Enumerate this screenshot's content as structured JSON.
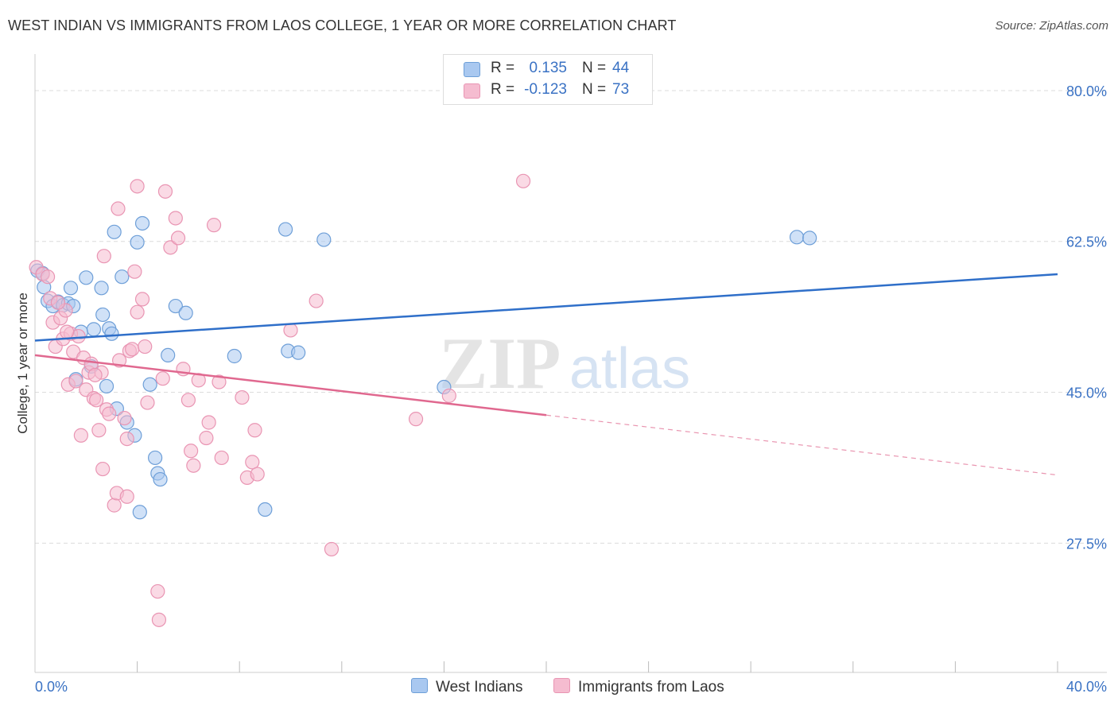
{
  "title": "WEST INDIAN VS IMMIGRANTS FROM LAOS COLLEGE, 1 YEAR OR MORE CORRELATION CHART",
  "source": "Source: ZipAtlas.com",
  "watermark": {
    "zip": "ZIP",
    "atlas": "atlas"
  },
  "legend": {
    "rows": [
      {
        "r_label": "R =",
        "r_value": "0.135",
        "n_label": "N =",
        "n_value": "44"
      },
      {
        "r_label": "R =",
        "r_value": "-0.123",
        "n_label": "N =",
        "n_value": "73"
      }
    ]
  },
  "colors": {
    "blue_fill": "#a9c8f0",
    "blue_stroke": "#6e9fd8",
    "blue_line": "#2f6fc9",
    "pink_fill": "#f5bcd0",
    "pink_stroke": "#e995b3",
    "pink_line": "#e0688f",
    "axis_text": "#3a72c4",
    "grid": "#dcdcdc"
  },
  "chart_data": {
    "type": "scatter",
    "xlabel": "",
    "ylabel": "College, 1 year or more",
    "xlim": [
      0,
      40
    ],
    "ylim": [
      12.5,
      83.5
    ],
    "x_tick_labels": [
      "0.0%",
      "40.0%"
    ],
    "y_ticks": [
      27.5,
      45.0,
      62.5,
      80.0
    ],
    "y_tick_labels": [
      "27.5%",
      "45.0%",
      "62.5%",
      "80.0%"
    ],
    "grid": true,
    "legend_position": "top-center",
    "series": [
      {
        "name": "West Indians",
        "color": "#6e9fd8",
        "trend": {
          "x": [
            0,
            40
          ],
          "y": [
            51.0,
            58.7
          ],
          "dashed_from": null
        },
        "points": [
          [
            0.1,
            59.1
          ],
          [
            0.3,
            58.8
          ],
          [
            0.35,
            57.2
          ],
          [
            0.5,
            55.6
          ],
          [
            0.7,
            55.0
          ],
          [
            0.9,
            55.5
          ],
          [
            1.1,
            55.1
          ],
          [
            1.3,
            55.3
          ],
          [
            1.4,
            57.1
          ],
          [
            1.5,
            55.0
          ],
          [
            1.6,
            46.5
          ],
          [
            1.8,
            52.0
          ],
          [
            2.0,
            58.3
          ],
          [
            2.2,
            48.0
          ],
          [
            2.3,
            52.3
          ],
          [
            2.6,
            57.1
          ],
          [
            2.65,
            54.0
          ],
          [
            2.8,
            45.7
          ],
          [
            2.9,
            52.4
          ],
          [
            3.0,
            51.8
          ],
          [
            3.1,
            63.6
          ],
          [
            3.2,
            43.1
          ],
          [
            3.4,
            58.4
          ],
          [
            3.6,
            41.5
          ],
          [
            3.9,
            40.0
          ],
          [
            4.0,
            62.4
          ],
          [
            4.2,
            64.6
          ],
          [
            4.5,
            45.9
          ],
          [
            4.7,
            37.4
          ],
          [
            4.8,
            35.6
          ],
          [
            4.9,
            34.9
          ],
          [
            5.2,
            49.3
          ],
          [
            5.5,
            55.0
          ],
          [
            5.9,
            54.2
          ],
          [
            7.8,
            49.2
          ],
          [
            9.0,
            31.4
          ],
          [
            9.8,
            63.9
          ],
          [
            9.9,
            49.8
          ],
          [
            10.3,
            49.6
          ],
          [
            11.3,
            62.7
          ],
          [
            16.0,
            45.6
          ],
          [
            29.8,
            63.0
          ],
          [
            30.3,
            62.9
          ],
          [
            4.1,
            31.1
          ]
        ]
      },
      {
        "name": "Immigrants from Laos",
        "color": "#e995b3",
        "trend": {
          "x": [
            0,
            40
          ],
          "y": [
            49.3,
            35.4
          ],
          "dashed_from": 20
        },
        "points": [
          [
            0.05,
            59.5
          ],
          [
            0.3,
            58.7
          ],
          [
            0.6,
            55.9
          ],
          [
            0.7,
            53.1
          ],
          [
            0.8,
            50.3
          ],
          [
            1.0,
            53.6
          ],
          [
            1.1,
            51.2
          ],
          [
            1.2,
            54.5
          ],
          [
            1.3,
            45.9
          ],
          [
            1.4,
            51.8
          ],
          [
            1.5,
            49.7
          ],
          [
            1.6,
            46.3
          ],
          [
            1.7,
            51.5
          ],
          [
            1.8,
            40.0
          ],
          [
            1.9,
            49.0
          ],
          [
            2.0,
            45.3
          ],
          [
            2.1,
            47.3
          ],
          [
            2.2,
            48.3
          ],
          [
            2.3,
            44.3
          ],
          [
            2.4,
            44.1
          ],
          [
            2.5,
            40.6
          ],
          [
            2.6,
            47.3
          ],
          [
            2.65,
            36.1
          ],
          [
            2.7,
            60.8
          ],
          [
            2.8,
            43.0
          ],
          [
            2.9,
            42.5
          ],
          [
            3.1,
            31.9
          ],
          [
            3.2,
            33.3
          ],
          [
            3.25,
            66.3
          ],
          [
            3.3,
            48.7
          ],
          [
            3.5,
            42.0
          ],
          [
            3.6,
            32.9
          ],
          [
            3.6,
            39.6
          ],
          [
            3.7,
            49.8
          ],
          [
            3.8,
            50.0
          ],
          [
            3.9,
            59.0
          ],
          [
            4.0,
            54.3
          ],
          [
            4.0,
            68.9
          ],
          [
            4.2,
            55.8
          ],
          [
            4.3,
            50.3
          ],
          [
            4.4,
            43.8
          ],
          [
            4.8,
            21.9
          ],
          [
            4.85,
            18.6
          ],
          [
            5.0,
            46.6
          ],
          [
            5.1,
            68.3
          ],
          [
            5.3,
            61.8
          ],
          [
            5.5,
            65.2
          ],
          [
            5.6,
            62.9
          ],
          [
            5.8,
            47.7
          ],
          [
            6.0,
            44.1
          ],
          [
            6.1,
            38.2
          ],
          [
            6.2,
            36.5
          ],
          [
            6.4,
            46.4
          ],
          [
            6.7,
            39.7
          ],
          [
            6.8,
            41.5
          ],
          [
            7.0,
            64.4
          ],
          [
            7.2,
            46.2
          ],
          [
            7.3,
            37.4
          ],
          [
            8.1,
            44.4
          ],
          [
            8.3,
            35.1
          ],
          [
            8.5,
            36.9
          ],
          [
            8.6,
            40.6
          ],
          [
            8.7,
            35.5
          ],
          [
            10.0,
            52.2
          ],
          [
            11.0,
            55.6
          ],
          [
            11.6,
            26.8
          ],
          [
            14.9,
            41.9
          ],
          [
            16.2,
            44.6
          ],
          [
            19.1,
            69.5
          ],
          [
            0.5,
            58.4
          ],
          [
            0.9,
            55.4
          ],
          [
            1.25,
            52.0
          ],
          [
            2.35,
            47.0
          ]
        ]
      }
    ]
  },
  "bottom_legend": [
    {
      "label": "West Indians"
    },
    {
      "label": "Immigrants from Laos"
    }
  ]
}
